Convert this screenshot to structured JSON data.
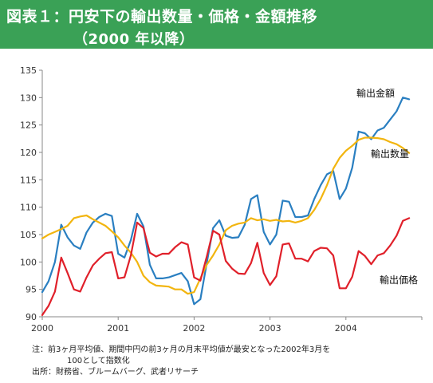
{
  "header": {
    "title_line1": "図表１：円安下の輸出数量・価格・金額推移",
    "title_line2": "（2000 年以降）"
  },
  "colors": {
    "header_bg": "#3aa156",
    "export_value": "#2a7fc1",
    "export_volume": "#f2b50f",
    "export_price": "#e0202a"
  },
  "chart_data": {
    "type": "line",
    "x_ticks": [
      "2000",
      "2001",
      "2002",
      "2003",
      "2004"
    ],
    "x_start": 2000,
    "xlim": [
      2000,
      2005
    ],
    "ylim": [
      90,
      135
    ],
    "y_ticks": [
      90,
      95,
      100,
      105,
      110,
      115,
      120,
      125,
      130,
      135
    ],
    "grid": false,
    "series": [
      {
        "name": "輸出金額",
        "color": "#2a7fc1",
        "values": [
          94.5,
          96.5,
          100,
          106.8,
          104.5,
          103,
          102.4,
          105.4,
          107.2,
          108.2,
          108.8,
          108.4,
          101.5,
          100.8,
          104,
          108.8,
          106.5,
          99.5,
          97,
          97,
          97.2,
          97.6,
          98,
          96.5,
          92.3,
          93.2,
          99.8,
          106.2,
          107.6,
          104.8,
          104.4,
          104.5,
          106.8,
          111.5,
          112.2,
          105.5,
          103.2,
          105,
          111.2,
          111,
          108.2,
          108.2,
          108.5,
          111.5,
          114,
          116,
          116.6,
          111.5,
          113.4,
          117.2,
          123.8,
          123.5,
          122.4,
          124,
          124.5,
          126,
          127.5,
          130,
          129.7
        ]
      },
      {
        "name": "輸出数量",
        "color": "#f2b50f",
        "values": [
          104.3,
          105,
          105.5,
          106,
          106.6,
          108,
          108.3,
          108.5,
          107.8,
          107.2,
          106.6,
          105.6,
          104.5,
          103,
          101.7,
          100,
          97.5,
          96.3,
          95.7,
          95.6,
          95.5,
          95,
          95,
          94.2,
          94.5,
          97,
          99.5,
          101.2,
          103.2,
          105.8,
          106.6,
          107,
          107.2,
          108,
          107.6,
          107.8,
          107.5,
          107.7,
          107.4,
          107.5,
          107.2,
          107.5,
          108,
          109.5,
          111.5,
          114,
          117,
          119,
          120.3,
          121.2,
          122.3,
          122.7,
          122.7,
          122.6,
          122.4,
          121.9,
          121.5,
          120.8,
          119.9
        ]
      },
      {
        "name": "輸出価格",
        "color": "#e0202a",
        "values": [
          90.3,
          92,
          94.6,
          100.8,
          98,
          95,
          94.6,
          97.2,
          99.4,
          100.6,
          101.6,
          101.8,
          97,
          97.2,
          101.2,
          107.2,
          106.2,
          101.7,
          101,
          101.5,
          101.5,
          102.7,
          103.6,
          103.2,
          97.2,
          96.6,
          101,
          105.7,
          105,
          100.2,
          98.8,
          97.9,
          97.8,
          99.8,
          103.5,
          98,
          95.8,
          97.4,
          103.2,
          103.4,
          100.6,
          100.6,
          100.1,
          102,
          102.6,
          102.5,
          101.2,
          95.2,
          95.2,
          97.3,
          102,
          101.1,
          99.6,
          101.2,
          101.6,
          103,
          104.8,
          107.5,
          108
        ]
      }
    ],
    "annotations": [
      {
        "text": "輸出金額",
        "series": "輸出金額"
      },
      {
        "text": "輸出数量",
        "series": "輸出数量"
      },
      {
        "text": "輸出価格",
        "series": "輸出価格"
      }
    ]
  },
  "notes": {
    "note_line1": "注：前3ヶ月平均値、期間中円の前3ヶ月の月末平均値が最安となった2002年3月を",
    "note_line2": "100として指数化",
    "source": "出所：財務省、ブルームバーグ、武者リサーチ"
  }
}
